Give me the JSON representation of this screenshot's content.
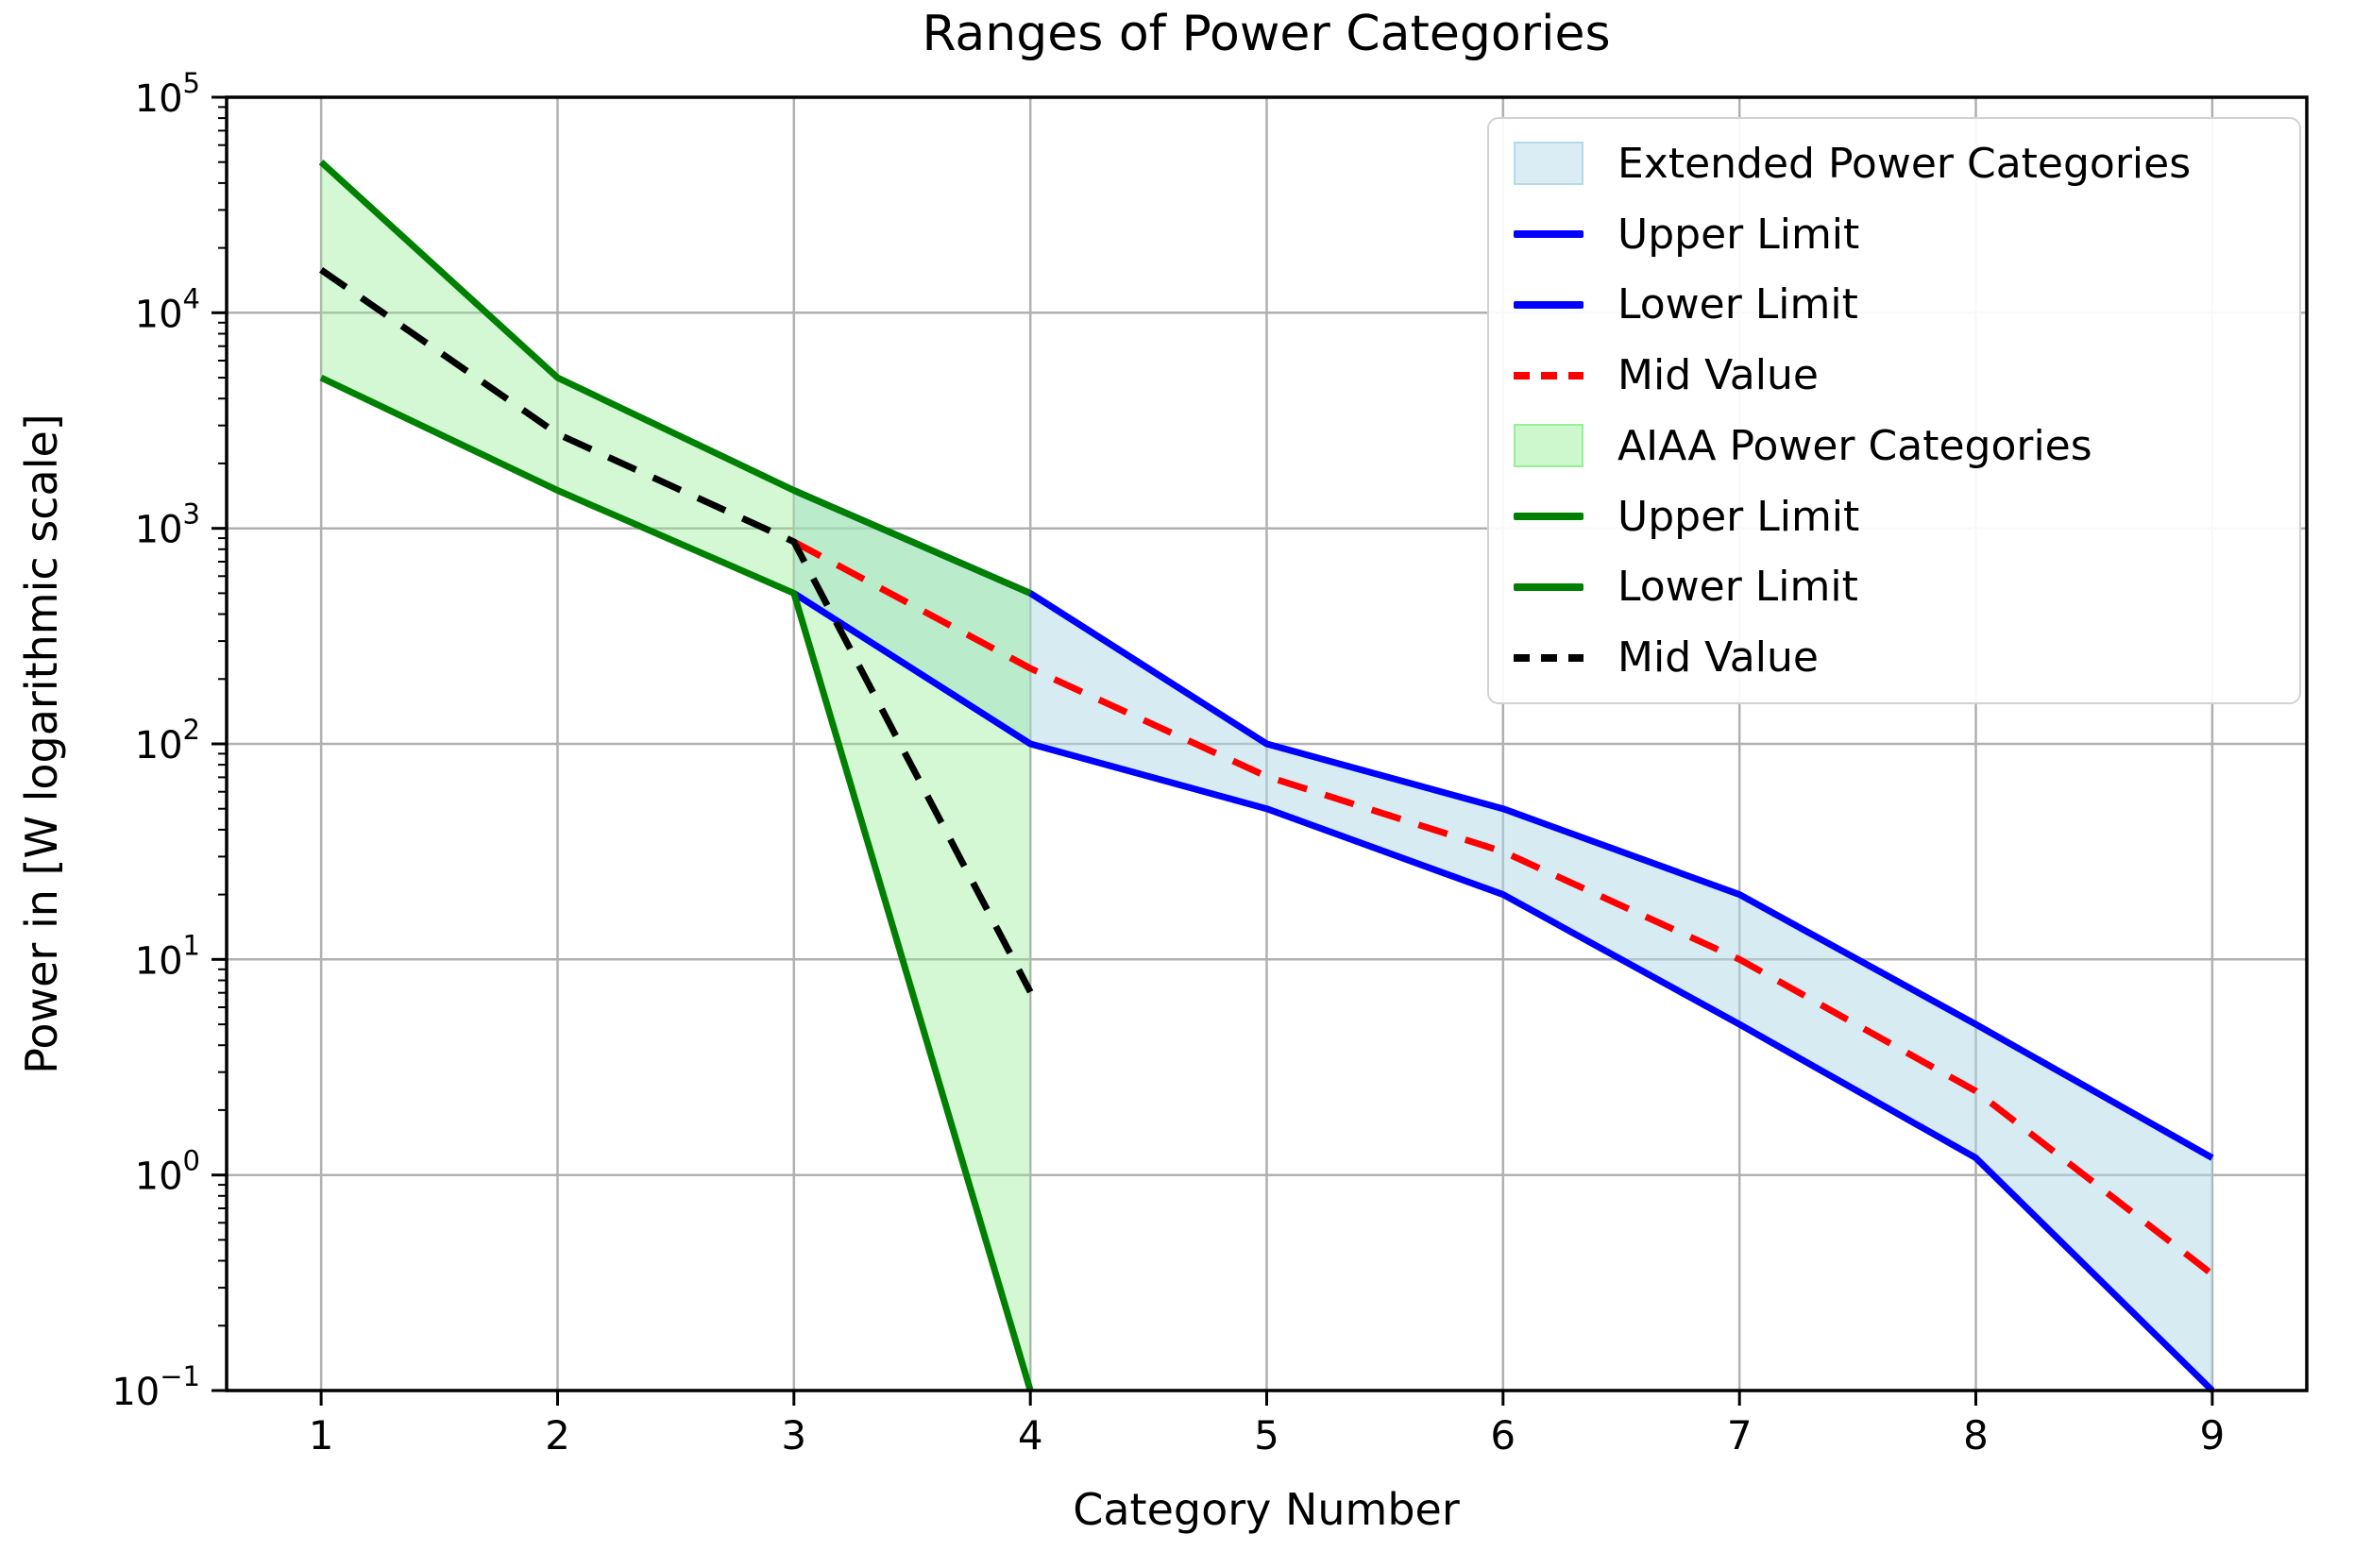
{
  "figure": {
    "background": "#ffffff"
  },
  "chart_data": {
    "type": "line",
    "title": "Ranges of Power Categories",
    "xlabel": "Category Number",
    "ylabel": "Power in [W logarithmic scale]",
    "yscale": "log",
    "grid": true,
    "legend_position": "upper right",
    "xlim": [
      0.6,
      9.4
    ],
    "ylim": [
      "1e-1",
      "1e5"
    ],
    "x_ticks": [
      1,
      2,
      3,
      4,
      5,
      6,
      7,
      8,
      9
    ],
    "y_tick_base": "10",
    "y_tick_exponents": [
      5,
      4,
      3,
      2,
      1,
      0,
      -1
    ],
    "y_tick_exponent_labels": [
      "5",
      "4",
      "3",
      "2",
      "1",
      "0",
      "−1"
    ],
    "colors": {
      "blue_line": "#0000ff",
      "green_line": "#008000",
      "red_line": "#ff0000",
      "black_line": "#000000",
      "lightblue_fill": "#add8e6",
      "lightgreen_fill": "#90ee90",
      "grid": "#b0b0b0"
    },
    "bands": [
      {
        "name": "Extended Power Categories",
        "x": [
          3,
          4,
          5,
          6,
          7,
          8,
          9
        ],
        "upper": [
          1500,
          500,
          100,
          50,
          20,
          5,
          1.2
        ],
        "lower": [
          500,
          100,
          50,
          20,
          5,
          1.2,
          0.1
        ],
        "mid": [
          866,
          224,
          70.7,
          31.6,
          10,
          2.45,
          0.346
        ],
        "fill_color": "#add8e6",
        "fill_opacity": 0.5,
        "limit_color": "#0000ff",
        "mid_color": "#ff0000",
        "upper_label": "Upper Limit",
        "lower_label": "Lower Limit",
        "mid_label": "Mid Value"
      },
      {
        "name": "AIAA Power Categories",
        "x": [
          1,
          2,
          3,
          4
        ],
        "upper": [
          50000,
          5000,
          1500,
          500
        ],
        "lower": [
          5000,
          1500,
          500,
          0.1
        ],
        "mid": [
          15811,
          2739,
          866,
          7.07
        ],
        "fill_color": "#90ee90",
        "fill_opacity": 0.4,
        "limit_color": "#008000",
        "mid_color": "#000000",
        "upper_label": "Upper Limit",
        "lower_label": "Lower Limit",
        "mid_label": "Mid Value"
      }
    ]
  }
}
